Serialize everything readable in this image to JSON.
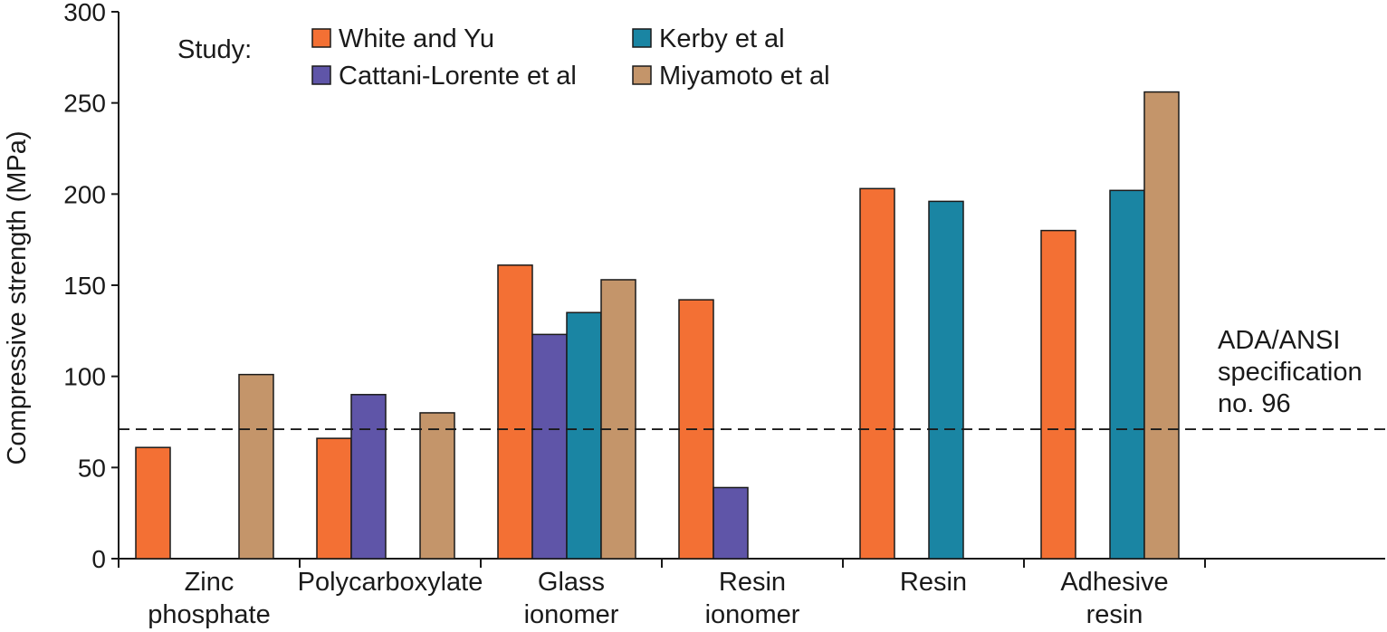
{
  "chart_data": {
    "type": "bar",
    "title": "",
    "ylabel": "Compressive strength (MPa)",
    "xlabel": "",
    "ylim": [
      0,
      300
    ],
    "yticks": [
      0,
      50,
      100,
      150,
      200,
      250,
      300
    ],
    "categories": [
      [
        "Zinc",
        "phosphate"
      ],
      [
        "Polycarboxylate"
      ],
      [
        "Glass",
        "ionomer"
      ],
      [
        "Resin",
        "ionomer"
      ],
      [
        "Resin"
      ],
      [
        "Adhesive",
        "resin"
      ]
    ],
    "series": [
      {
        "name": "White and Yu",
        "color": "#f37034",
        "values": [
          61,
          66,
          161,
          142,
          203,
          180
        ]
      },
      {
        "name": "Cattani-Lorente et al",
        "color": "#5f55a8",
        "values": [
          null,
          90,
          123,
          39,
          null,
          null
        ]
      },
      {
        "name": "Kerby et al",
        "color": "#1a85a3",
        "values": [
          null,
          null,
          135,
          null,
          196,
          202
        ]
      },
      {
        "name": "Miyamoto et al",
        "color": "#c4956a",
        "values": [
          101,
          80,
          153,
          null,
          null,
          256
        ]
      }
    ],
    "legend": {
      "title": "Study:",
      "placement": "top-left"
    },
    "reference_line": {
      "value": 71,
      "label": [
        "ADA/ANSI",
        "specification",
        "no. 96"
      ]
    }
  }
}
